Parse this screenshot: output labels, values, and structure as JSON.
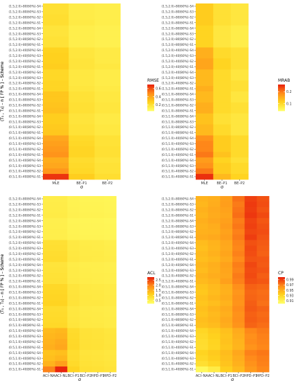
{
  "chart_data": [
    {
      "type": "heatmap",
      "title": "",
      "ylabel": "(T₁ , T₂) – n [ FP % ] – Scheme",
      "xlabel": "σ",
      "x_categories": [
        "MLE",
        "BE–P1",
        "BE–P2"
      ],
      "legend_title": "RMSE",
      "legend_ticks": [
        "0.6",
        "0.4",
        "0.2"
      ],
      "range": [
        0.05,
        0.7
      ],
      "colors": [
        "#ffff66",
        "#ffd21e",
        "#ff8c1a",
        "#e8200c"
      ]
    },
    {
      "type": "heatmap",
      "title": "",
      "ylabel": "(T₁ , T₂) – n [ FP % ] – Scheme",
      "xlabel": "σ",
      "x_categories": [
        "MLE",
        "BE–P1",
        "BE–P2"
      ],
      "legend_title": "MRAB",
      "legend_ticks": [
        "0.2",
        "0.1"
      ],
      "range": [
        0.04,
        0.26
      ],
      "colors": [
        "#ffff66",
        "#ffd21e",
        "#ff8c1a",
        "#e8200c"
      ]
    },
    {
      "type": "heatmap",
      "title": "",
      "ylabel": "(T₁ , T₂) – n [ FP % ] – Scheme",
      "xlabel": "σ",
      "x_categories": [
        "ACI–NA",
        "ACI–NL",
        "BCI–P1",
        "BCI–P2",
        "HPD–P1",
        "HPD–P2"
      ],
      "legend_title": "ACL",
      "legend_ticks": [
        "2.5",
        "2.0",
        "1.5",
        "1.0",
        "0.5"
      ],
      "range": [
        0.2,
        2.8
      ],
      "colors": [
        "#ffff66",
        "#ffd21e",
        "#ff8c1a",
        "#e8200c"
      ]
    },
    {
      "type": "heatmap",
      "title": "",
      "ylabel": "(T₁ , T₂) – n [ FP % ] – Scheme",
      "xlabel": "σ",
      "x_categories": [
        "ACI–NA",
        "ACI–NL",
        "BCI–P1",
        "BCI–P2",
        "HPD–P1",
        "HPD–P2"
      ],
      "legend_title": "CP",
      "legend_ticks": [
        "0.99",
        "0.97",
        "0.95",
        "0.93",
        "0.91"
      ],
      "range": [
        0.9,
        1.0
      ],
      "colors": [
        "#ffff66",
        "#ffd21e",
        "#ff8c1a",
        "#e8200c"
      ]
    }
  ],
  "y_categories": [
    "(1.5,2.0)–80[60%]–S4",
    "(1.5,2.0)–80[60%]–S3",
    "(1.5,2.0)–80[60%]–S2",
    "(1.5,2.0)–80[60%]–S1",
    "(1.5,2.0)–80[80%]–S4",
    "(1.5,2.0)–80[80%]–S3",
    "(1.5,2.0)–80[80%]–S2",
    "(1.5,2.0)–80[80%]–S1",
    "(1.5,2.0)–40[60%]–S4",
    "(1.5,2.0)–40[60%]–S3",
    "(1.5,2.0)–40[60%]–S2",
    "(1.5,2.0)–40[60%]–S1",
    "(1.5,2.0)–40[80%]–S4",
    "(1.5,2.0)–40[80%]–S3",
    "(1.5,2.0)–40[80%]–S2",
    "(1.5,2.0)–40[80%]–S1",
    "(0.5,1.0)–80[60%]–S4",
    "(0.5,1.0)–80[60%]–S3",
    "(0.5,1.0)–80[60%]–S2",
    "(0.5,1.0)–80[60%]–S1",
    "(0.5,1.0)–80[80%]–S4",
    "(0.5,1.0)–80[80%]–S3",
    "(0.5,1.0)–80[80%]–S2",
    "(0.5,1.0)–80[80%]–S1",
    "(0.5,1.0)–40[60%]–S4",
    "(0.5,1.0)–40[60%]–S3",
    "(0.5,1.0)–40[60%]–S2",
    "(0.5,1.0)–40[60%]–S1",
    "(0.5,1.0)–40[80%]–S4",
    "(0.5,1.0)–40[80%]–S3",
    "(0.5,1.0)–40[80%]–S2",
    "(0.5,1.0)–40[80%]–S1"
  ],
  "values": [
    [
      [
        0.2,
        0.14,
        0.13
      ],
      [
        0.2,
        0.14,
        0.13
      ],
      [
        0.21,
        0.14,
        0.13
      ],
      [
        0.21,
        0.15,
        0.13
      ],
      [
        0.18,
        0.13,
        0.12
      ],
      [
        0.18,
        0.13,
        0.12
      ],
      [
        0.19,
        0.13,
        0.12
      ],
      [
        0.19,
        0.13,
        0.12
      ],
      [
        0.26,
        0.17,
        0.15
      ],
      [
        0.27,
        0.17,
        0.15
      ],
      [
        0.27,
        0.18,
        0.15
      ],
      [
        0.28,
        0.18,
        0.16
      ],
      [
        0.24,
        0.16,
        0.14
      ],
      [
        0.24,
        0.16,
        0.14
      ],
      [
        0.25,
        0.16,
        0.14
      ],
      [
        0.25,
        0.17,
        0.15
      ],
      [
        0.3,
        0.19,
        0.16
      ],
      [
        0.3,
        0.19,
        0.16
      ],
      [
        0.31,
        0.2,
        0.17
      ],
      [
        0.32,
        0.2,
        0.17
      ],
      [
        0.28,
        0.18,
        0.15
      ],
      [
        0.28,
        0.18,
        0.15
      ],
      [
        0.29,
        0.19,
        0.16
      ],
      [
        0.3,
        0.19,
        0.16
      ],
      [
        0.4,
        0.23,
        0.19
      ],
      [
        0.42,
        0.24,
        0.19
      ],
      [
        0.44,
        0.25,
        0.2
      ],
      [
        0.46,
        0.25,
        0.2
      ],
      [
        0.38,
        0.22,
        0.18
      ],
      [
        0.4,
        0.23,
        0.19
      ],
      [
        0.45,
        0.24,
        0.19
      ],
      [
        0.66,
        0.28,
        0.21
      ]
    ],
    [
      [
        0.12,
        0.09,
        0.08
      ],
      [
        0.12,
        0.09,
        0.08
      ],
      [
        0.12,
        0.09,
        0.08
      ],
      [
        0.12,
        0.09,
        0.08
      ],
      [
        0.11,
        0.08,
        0.07
      ],
      [
        0.11,
        0.08,
        0.07
      ],
      [
        0.11,
        0.08,
        0.07
      ],
      [
        0.11,
        0.08,
        0.07
      ],
      [
        0.15,
        0.1,
        0.09
      ],
      [
        0.15,
        0.1,
        0.09
      ],
      [
        0.16,
        0.11,
        0.09
      ],
      [
        0.16,
        0.11,
        0.09
      ],
      [
        0.14,
        0.1,
        0.08
      ],
      [
        0.14,
        0.1,
        0.08
      ],
      [
        0.14,
        0.1,
        0.09
      ],
      [
        0.15,
        0.1,
        0.09
      ],
      [
        0.14,
        0.1,
        0.08
      ],
      [
        0.14,
        0.1,
        0.08
      ],
      [
        0.15,
        0.1,
        0.09
      ],
      [
        0.15,
        0.1,
        0.09
      ],
      [
        0.13,
        0.09,
        0.08
      ],
      [
        0.13,
        0.09,
        0.08
      ],
      [
        0.14,
        0.1,
        0.08
      ],
      [
        0.14,
        0.1,
        0.08
      ],
      [
        0.18,
        0.12,
        0.1
      ],
      [
        0.19,
        0.12,
        0.1
      ],
      [
        0.19,
        0.12,
        0.1
      ],
      [
        0.2,
        0.13,
        0.1
      ],
      [
        0.17,
        0.11,
        0.09
      ],
      [
        0.18,
        0.12,
        0.1
      ],
      [
        0.2,
        0.12,
        0.1
      ],
      [
        0.25,
        0.14,
        0.11
      ]
    ],
    [
      [
        0.55,
        0.55,
        0.45,
        0.42,
        0.42,
        0.4
      ],
      [
        0.56,
        0.56,
        0.46,
        0.43,
        0.43,
        0.41
      ],
      [
        0.57,
        0.57,
        0.47,
        0.44,
        0.44,
        0.42
      ],
      [
        0.58,
        0.58,
        0.48,
        0.45,
        0.45,
        0.43
      ],
      [
        0.5,
        0.5,
        0.42,
        0.4,
        0.4,
        0.38
      ],
      [
        0.51,
        0.51,
        0.43,
        0.41,
        0.41,
        0.39
      ],
      [
        0.52,
        0.52,
        0.44,
        0.42,
        0.42,
        0.4
      ],
      [
        0.53,
        0.53,
        0.45,
        0.43,
        0.43,
        0.41
      ],
      [
        0.8,
        0.8,
        0.62,
        0.57,
        0.56,
        0.53
      ],
      [
        0.82,
        0.82,
        0.63,
        0.58,
        0.57,
        0.54
      ],
      [
        0.85,
        0.85,
        0.65,
        0.59,
        0.58,
        0.55
      ],
      [
        0.88,
        0.88,
        0.66,
        0.6,
        0.59,
        0.56
      ],
      [
        0.72,
        0.72,
        0.57,
        0.53,
        0.52,
        0.5
      ],
      [
        0.74,
        0.74,
        0.58,
        0.54,
        0.53,
        0.51
      ],
      [
        0.76,
        0.76,
        0.59,
        0.55,
        0.54,
        0.52
      ],
      [
        0.78,
        0.78,
        0.6,
        0.56,
        0.55,
        0.53
      ],
      [
        0.95,
        0.95,
        0.7,
        0.62,
        0.61,
        0.58
      ],
      [
        0.98,
        0.98,
        0.72,
        0.63,
        0.62,
        0.59
      ],
      [
        1.0,
        1.0,
        0.73,
        0.64,
        0.63,
        0.6
      ],
      [
        1.03,
        1.03,
        0.74,
        0.65,
        0.64,
        0.61
      ],
      [
        0.88,
        0.88,
        0.66,
        0.6,
        0.59,
        0.56
      ],
      [
        0.9,
        0.9,
        0.67,
        0.61,
        0.6,
        0.57
      ],
      [
        0.92,
        0.92,
        0.68,
        0.62,
        0.61,
        0.58
      ],
      [
        0.95,
        0.95,
        0.7,
        0.63,
        0.62,
        0.59
      ],
      [
        1.35,
        1.4,
        0.9,
        0.75,
        0.73,
        0.69
      ],
      [
        1.4,
        1.45,
        0.92,
        0.76,
        0.74,
        0.7
      ],
      [
        1.45,
        1.55,
        0.94,
        0.77,
        0.75,
        0.71
      ],
      [
        1.5,
        1.6,
        0.95,
        0.78,
        0.76,
        0.72
      ],
      [
        1.25,
        1.3,
        0.86,
        0.72,
        0.71,
        0.67
      ],
      [
        1.3,
        1.4,
        0.88,
        0.74,
        0.72,
        0.68
      ],
      [
        1.45,
        1.7,
        0.92,
        0.76,
        0.74,
        0.7
      ],
      [
        2.0,
        2.75,
        1.02,
        0.8,
        0.78,
        0.73
      ]
    ],
    [
      [
        0.948,
        0.95,
        0.957,
        0.975,
        0.99,
        0.985
      ],
      [
        0.946,
        0.951,
        0.958,
        0.972,
        0.992,
        0.986
      ],
      [
        0.949,
        0.953,
        0.956,
        0.974,
        0.991,
        0.984
      ],
      [
        0.947,
        0.952,
        0.955,
        0.976,
        0.993,
        0.987
      ],
      [
        0.95,
        0.954,
        0.957,
        0.971,
        0.989,
        0.983
      ],
      [
        0.948,
        0.951,
        0.959,
        0.973,
        0.99,
        0.985
      ],
      [
        0.949,
        0.95,
        0.956,
        0.97,
        0.988,
        0.986
      ],
      [
        0.951,
        0.953,
        0.958,
        0.972,
        0.991,
        0.984
      ],
      [
        0.944,
        0.948,
        0.954,
        0.969,
        0.985,
        0.982
      ],
      [
        0.942,
        0.947,
        0.953,
        0.968,
        0.987,
        0.981
      ],
      [
        0.945,
        0.949,
        0.955,
        0.97,
        0.986,
        0.98
      ],
      [
        0.943,
        0.946,
        0.952,
        0.967,
        0.984,
        0.983
      ],
      [
        0.946,
        0.95,
        0.956,
        0.971,
        0.988,
        0.982
      ],
      [
        0.944,
        0.949,
        0.955,
        0.969,
        0.986,
        0.984
      ],
      [
        0.947,
        0.951,
        0.954,
        0.972,
        0.987,
        0.981
      ],
      [
        0.945,
        0.948,
        0.957,
        0.97,
        0.985,
        0.983
      ],
      [
        0.94,
        0.945,
        0.95,
        0.965,
        0.98,
        0.978
      ],
      [
        0.938,
        0.944,
        0.949,
        0.962,
        0.978,
        0.976
      ],
      [
        0.941,
        0.946,
        0.951,
        0.964,
        0.979,
        0.977
      ],
      [
        0.939,
        0.943,
        0.948,
        0.963,
        0.981,
        0.975
      ],
      [
        0.942,
        0.947,
        0.952,
        0.966,
        0.982,
        0.979
      ],
      [
        0.94,
        0.945,
        0.95,
        0.964,
        0.98,
        0.977
      ],
      [
        0.943,
        0.946,
        0.953,
        0.965,
        0.981,
        0.978
      ],
      [
        0.941,
        0.944,
        0.951,
        0.963,
        0.979,
        0.976
      ],
      [
        0.93,
        0.936,
        0.942,
        0.952,
        0.968,
        0.972
      ],
      [
        0.928,
        0.934,
        0.94,
        0.95,
        0.965,
        0.97
      ],
      [
        0.926,
        0.932,
        0.941,
        0.948,
        0.966,
        0.969
      ],
      [
        0.925,
        0.931,
        0.939,
        0.947,
        0.963,
        0.968
      ],
      [
        0.932,
        0.937,
        0.944,
        0.954,
        0.97,
        0.973
      ],
      [
        0.929,
        0.935,
        0.942,
        0.951,
        0.967,
        0.971
      ],
      [
        0.924,
        0.93,
        0.94,
        0.949,
        0.964,
        0.97
      ],
      [
        0.905,
        0.915,
        0.935,
        0.945,
        0.96,
        0.968
      ]
    ]
  ]
}
